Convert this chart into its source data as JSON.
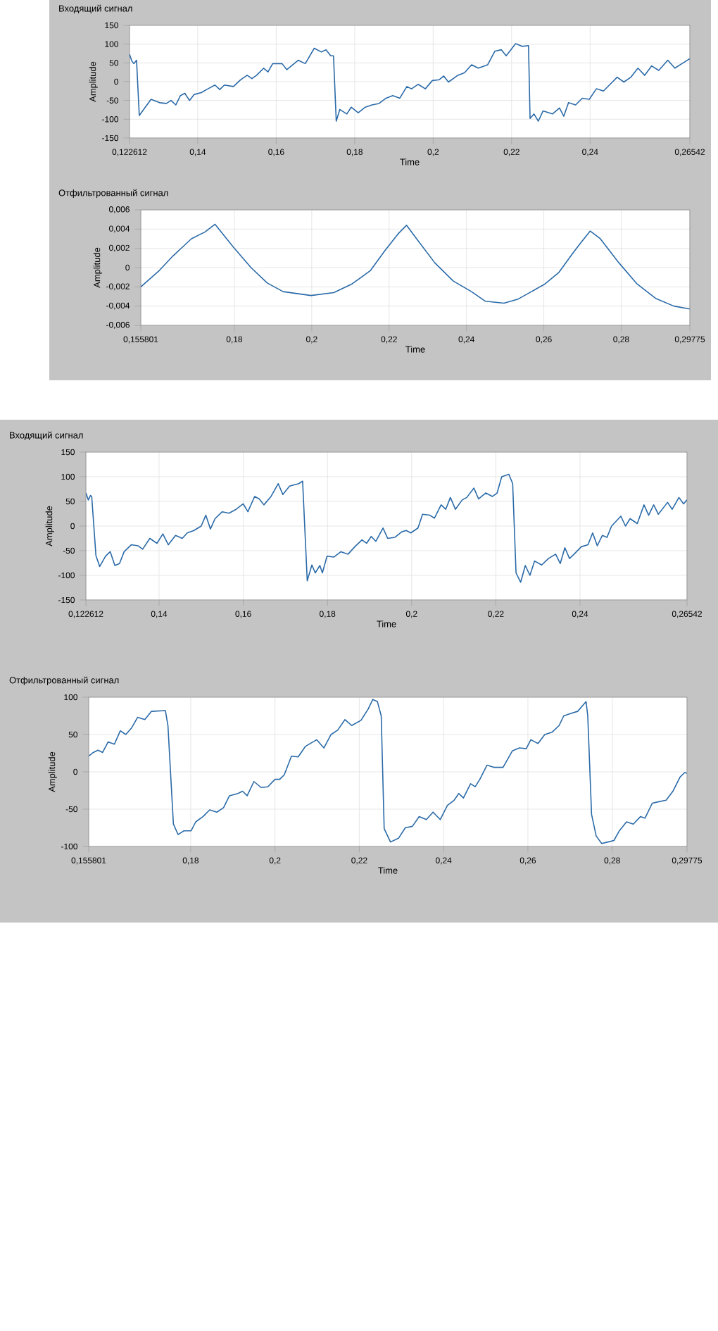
{
  "chart_data": [
    {
      "type": "line",
      "title": "Входящий сигнал",
      "xlabel": "Time",
      "ylabel": "Amplitude",
      "grid": true,
      "marker": "none",
      "xlim": [
        0.122612,
        0.26542
      ],
      "ylim": [
        -150,
        150
      ],
      "xticks": [
        {
          "value": 0.122612,
          "label": "0,122612"
        },
        {
          "value": 0.14,
          "label": "0,14"
        },
        {
          "value": 0.16,
          "label": "0,16"
        },
        {
          "value": 0.18,
          "label": "0,18"
        },
        {
          "value": 0.2,
          "label": "0,2"
        },
        {
          "value": 0.22,
          "label": "0,22"
        },
        {
          "value": 0.24,
          "label": "0,24"
        },
        {
          "value": 0.26542,
          "label": "0,26542"
        }
      ],
      "yticks": [
        -150,
        -100,
        -50,
        0,
        50,
        100,
        150
      ],
      "x": [
        0.122612,
        0.1232,
        0.1237,
        0.1244,
        0.1251,
        0.1281,
        0.1303,
        0.132,
        0.1332,
        0.1344,
        0.1356,
        0.1367,
        0.1379,
        0.1391,
        0.1409,
        0.1426,
        0.1444,
        0.1456,
        0.1468,
        0.1491,
        0.1509,
        0.1526,
        0.1538,
        0.155,
        0.1568,
        0.1579,
        0.1591,
        0.1615,
        0.1627,
        0.1656,
        0.1674,
        0.1697,
        0.1715,
        0.1727,
        0.1739,
        0.1746,
        0.1753,
        0.1762,
        0.178,
        0.1791,
        0.1809,
        0.1827,
        0.1844,
        0.1862,
        0.188,
        0.1897,
        0.1915,
        0.1933,
        0.1945,
        0.1962,
        0.198,
        0.1998,
        0.2015,
        0.2027,
        0.2039,
        0.2063,
        0.208,
        0.2098,
        0.2115,
        0.2139,
        0.2157,
        0.2174,
        0.2186,
        0.2198,
        0.221,
        0.2227,
        0.2243,
        0.2247,
        0.2257,
        0.2268,
        0.228,
        0.2304,
        0.2322,
        0.2333,
        0.2345,
        0.2363,
        0.238,
        0.2398,
        0.2416,
        0.2434,
        0.2451,
        0.2469,
        0.2486,
        0.2504,
        0.2522,
        0.2539,
        0.2557,
        0.2575,
        0.2598,
        0.2616,
        0.2634,
        0.2654
      ],
      "series": [
        {
          "color": "#2a6aa8",
          "values": [
            73,
            55,
            48,
            57,
            -90,
            -47,
            -56,
            -58,
            -50,
            -62,
            -37,
            -31,
            -50,
            -34,
            -29,
            -19,
            -9,
            -21,
            -9,
            -13,
            5,
            17,
            8,
            17,
            36,
            26,
            48,
            48,
            32,
            57,
            48,
            89,
            79,
            85,
            69,
            69,
            -105,
            -74,
            -86,
            -68,
            -83,
            -68,
            -62,
            -58,
            -44,
            -37,
            -44,
            -13,
            -19,
            -7,
            -19,
            3,
            5,
            15,
            -1,
            17,
            24,
            45,
            36,
            45,
            81,
            85,
            69,
            85,
            101,
            94,
            96,
            -98,
            -86,
            -105,
            -78,
            -86,
            -70,
            -92,
            -56,
            -62,
            -44,
            -47,
            -19,
            -25,
            -7,
            12,
            -1,
            12,
            36,
            17,
            42,
            30,
            57,
            36,
            48,
            61
          ]
        }
      ]
    },
    {
      "type": "line",
      "title": "Отфильтрованный сигнал",
      "xlabel": "Time",
      "ylabel": "Amplitude",
      "grid": true,
      "marker": "none",
      "xlim": [
        0.155801,
        0.29775
      ],
      "ylim": [
        -0.006,
        0.006
      ],
      "xticks": [
        {
          "value": 0.155801,
          "label": "0,155801"
        },
        {
          "value": 0.18,
          "label": "0,18"
        },
        {
          "value": 0.2,
          "label": "0,2"
        },
        {
          "value": 0.22,
          "label": "0,22"
        },
        {
          "value": 0.24,
          "label": "0,24"
        },
        {
          "value": 0.26,
          "label": "0,26"
        },
        {
          "value": 0.28,
          "label": "0,28"
        },
        {
          "value": 0.29775,
          "label": "0,29775"
        }
      ],
      "yticks": [
        {
          "value": -0.006,
          "label": "-0,006"
        },
        {
          "value": -0.004,
          "label": "-0,004"
        },
        {
          "value": -0.002,
          "label": "-0,002"
        },
        0,
        {
          "value": 0.002,
          "label": "0,002"
        },
        {
          "value": 0.004,
          "label": "0,004"
        },
        {
          "value": 0.006,
          "label": "0,006"
        }
      ],
      "x": [
        0.155801,
        0.1606,
        0.1641,
        0.1689,
        0.1724,
        0.175,
        0.1796,
        0.1843,
        0.1885,
        0.1926,
        0.1962,
        0.1998,
        0.2057,
        0.2104,
        0.2152,
        0.2188,
        0.2223,
        0.2245,
        0.2271,
        0.2318,
        0.2366,
        0.2413,
        0.2449,
        0.2497,
        0.2532,
        0.2568,
        0.2603,
        0.2639,
        0.2675,
        0.2698,
        0.272,
        0.2746,
        0.2794,
        0.2841,
        0.2889,
        0.2936,
        0.2977
      ],
      "series": [
        {
          "color": "#2a6aa8",
          "values": [
            -0.002,
            -0.0003,
            0.0012,
            0.003,
            0.0037,
            0.0045,
            0.0022,
            0.0,
            -0.0016,
            -0.0025,
            -0.0027,
            -0.0029,
            -0.0026,
            -0.0017,
            -0.0003,
            0.0017,
            0.0035,
            0.0044,
            0.003,
            0.0005,
            -0.0014,
            -0.0025,
            -0.0035,
            -0.0037,
            -0.0033,
            -0.0025,
            -0.0017,
            -0.0005,
            0.0015,
            0.0027,
            0.0038,
            0.003,
            0.0005,
            -0.0017,
            -0.0032,
            -0.004,
            -0.0043
          ]
        }
      ]
    },
    {
      "type": "line",
      "title": "Входящий сигнал",
      "xlabel": "Time",
      "ylabel": "Amplitude",
      "grid": true,
      "marker": "none",
      "xlim": [
        0.122612,
        0.26542
      ],
      "ylim": [
        -150,
        150
      ],
      "xticks": [
        {
          "value": 0.122612,
          "label": "0,122612"
        },
        {
          "value": 0.14,
          "label": "0,14"
        },
        {
          "value": 0.16,
          "label": "0,16"
        },
        {
          "value": 0.18,
          "label": "0,18"
        },
        {
          "value": 0.2,
          "label": "0,2"
        },
        {
          "value": 0.22,
          "label": "0,22"
        },
        {
          "value": 0.24,
          "label": "0,24"
        },
        {
          "value": 0.26542,
          "label": "0,26542"
        }
      ],
      "yticks": [
        -150,
        -100,
        -50,
        0,
        50,
        100,
        150
      ],
      "x": [
        0.122612,
        0.1232,
        0.1237,
        0.124,
        0.125,
        0.1259,
        0.1273,
        0.1284,
        0.1295,
        0.1306,
        0.1317,
        0.1334,
        0.135,
        0.1361,
        0.1378,
        0.1395,
        0.1409,
        0.1422,
        0.1439,
        0.1455,
        0.1467,
        0.1483,
        0.15,
        0.1511,
        0.1522,
        0.1533,
        0.155,
        0.1566,
        0.1583,
        0.16,
        0.1611,
        0.1627,
        0.1638,
        0.1649,
        0.1666,
        0.1683,
        0.1694,
        0.171,
        0.1732,
        0.1741,
        0.1752,
        0.1763,
        0.1771,
        0.1782,
        0.1788,
        0.1799,
        0.1815,
        0.1832,
        0.1849,
        0.1865,
        0.1882,
        0.1893,
        0.1904,
        0.1915,
        0.1932,
        0.1943,
        0.196,
        0.1976,
        0.1987,
        0.1998,
        0.2015,
        0.2026,
        0.2043,
        0.2054,
        0.207,
        0.2081,
        0.2092,
        0.2104,
        0.212,
        0.2131,
        0.2148,
        0.2159,
        0.2176,
        0.2192,
        0.2203,
        0.2214,
        0.2231,
        0.224,
        0.2248,
        0.2259,
        0.227,
        0.2281,
        0.2292,
        0.2309,
        0.2325,
        0.2342,
        0.2353,
        0.2364,
        0.2375,
        0.2386,
        0.2403,
        0.2419,
        0.243,
        0.2441,
        0.2453,
        0.2464,
        0.2475,
        0.2486,
        0.2497,
        0.2508,
        0.2519,
        0.2536,
        0.2552,
        0.2563,
        0.2575,
        0.2586,
        0.2608,
        0.2619,
        0.2635,
        0.2646,
        0.2654
      ],
      "series": [
        {
          "color": "#2a6aa8",
          "values": [
            67,
            53,
            62,
            60,
            -60,
            -82,
            -61,
            -52,
            -80,
            -76,
            -52,
            -38,
            -40,
            -47,
            -25,
            -35,
            -16,
            -38,
            -19,
            -25,
            -14,
            -9,
            0,
            22,
            -6,
            15,
            29,
            26,
            34,
            45,
            29,
            60,
            55,
            43,
            60,
            86,
            64,
            81,
            86,
            91,
            -111,
            -79,
            -95,
            -80,
            -95,
            -61,
            -63,
            -52,
            -57,
            -42,
            -28,
            -35,
            -21,
            -31,
            -4,
            -25,
            -23,
            -12,
            -9,
            -14,
            -4,
            24,
            22,
            16,
            43,
            34,
            58,
            34,
            53,
            58,
            77,
            55,
            67,
            60,
            67,
            100,
            105,
            86,
            -95,
            -114,
            -80,
            -100,
            -71,
            -79,
            -66,
            -57,
            -76,
            -44,
            -66,
            -57,
            -42,
            -38,
            -14,
            -40,
            -19,
            -23,
            0,
            10,
            20,
            0,
            15,
            5,
            43,
            22,
            43,
            24,
            48,
            34,
            58,
            45,
            53
          ]
        }
      ]
    },
    {
      "type": "line",
      "title": "Отфильтрованный сигнал",
      "xlabel": "Time",
      "ylabel": "Amplitude",
      "grid": true,
      "marker": "none",
      "xlim": [
        0.155801,
        0.29775
      ],
      "ylim": [
        -100,
        100
      ],
      "xticks": [
        {
          "value": 0.155801,
          "label": "0,155801"
        },
        {
          "value": 0.18,
          "label": "0,18"
        },
        {
          "value": 0.2,
          "label": "0,2"
        },
        {
          "value": 0.22,
          "label": "0,22"
        },
        {
          "value": 0.24,
          "label": "0,24"
        },
        {
          "value": 0.26,
          "label": "0,26"
        },
        {
          "value": 0.28,
          "label": "0,28"
        },
        {
          "value": 0.29775,
          "label": "0,29775"
        }
      ],
      "yticks": [
        -100,
        -50,
        0,
        50,
        100
      ],
      "x": [
        0.155801,
        0.1569,
        0.158,
        0.1591,
        0.1604,
        0.1619,
        0.1633,
        0.1646,
        0.166,
        0.1674,
        0.1691,
        0.1707,
        0.174,
        0.1746,
        0.1759,
        0.177,
        0.1784,
        0.1801,
        0.1812,
        0.1829,
        0.1845,
        0.1862,
        0.1878,
        0.1892,
        0.1912,
        0.1923,
        0.1934,
        0.195,
        0.1967,
        0.1983,
        0.2,
        0.2011,
        0.2022,
        0.2039,
        0.2055,
        0.2072,
        0.2099,
        0.2116,
        0.2133,
        0.2149,
        0.2166,
        0.2182,
        0.2204,
        0.2221,
        0.2232,
        0.2243,
        0.2252,
        0.2259,
        0.2274,
        0.2293,
        0.2309,
        0.2326,
        0.2342,
        0.2359,
        0.2375,
        0.2392,
        0.2409,
        0.2425,
        0.2436,
        0.2447,
        0.2464,
        0.2475,
        0.2486,
        0.2503,
        0.2519,
        0.2541,
        0.2563,
        0.258,
        0.2596,
        0.2607,
        0.2624,
        0.264,
        0.2657,
        0.2674,
        0.2685,
        0.2701,
        0.2718,
        0.2738,
        0.2742,
        0.2751,
        0.2762,
        0.2775,
        0.279,
        0.2804,
        0.2817,
        0.2834,
        0.285,
        0.2867,
        0.2878,
        0.2895,
        0.2911,
        0.2928,
        0.2944,
        0.2961,
        0.2972,
        0.2977
      ],
      "series": [
        {
          "color": "#2a6aa8",
          "values": [
            21,
            26,
            29,
            26,
            40,
            37,
            55,
            50,
            59,
            73,
            70,
            81,
            82,
            62,
            -70,
            -84,
            -79,
            -79,
            -67,
            -60,
            -51,
            -54,
            -48,
            -32,
            -29,
            -26,
            -32,
            -13,
            -21,
            -20,
            -10,
            -10,
            -4,
            21,
            20,
            34,
            43,
            32,
            50,
            56,
            70,
            62,
            69,
            84,
            97,
            94,
            75,
            -76,
            -94,
            -89,
            -75,
            -73,
            -60,
            -64,
            -54,
            -64,
            -45,
            -38,
            -29,
            -35,
            -16,
            -20,
            -10,
            9,
            6,
            6,
            28,
            32,
            31,
            43,
            38,
            50,
            53,
            62,
            75,
            78,
            81,
            94,
            75,
            -57,
            -86,
            -96,
            -94,
            -92,
            -79,
            -67,
            -70,
            -60,
            -62,
            -42,
            -40,
            -38,
            -26,
            -7,
            -1,
            -2
          ]
        }
      ]
    }
  ]
}
